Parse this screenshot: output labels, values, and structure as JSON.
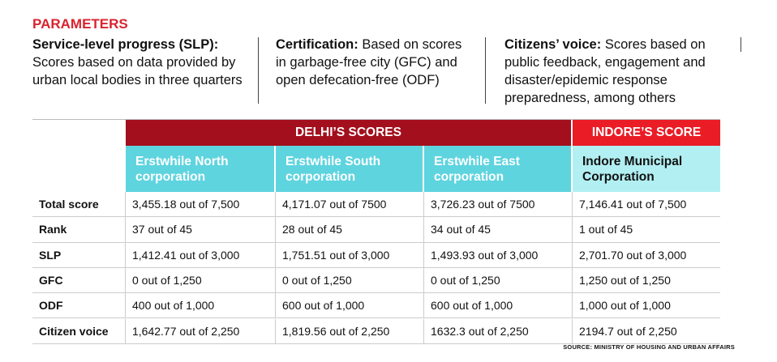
{
  "header": {
    "title": "PARAMETERS"
  },
  "parameters": [
    {
      "term": "Service-level progress (SLP):",
      "description": "Scores based on data provided by urban local bodies in three quarters"
    },
    {
      "term": "Certification:",
      "description": "Based on scores in garbage-free city (GFC) and open defecation-free (ODF)"
    },
    {
      "term": "Citizens’ voice:",
      "description": "Scores based on public feedback, engagement and disaster/epidemic response preparedness, among others"
    }
  ],
  "table": {
    "groups": [
      "DELHI’S SCORES",
      "INDORE’S SCORE"
    ],
    "columns": [
      "Erstwhile North corporation",
      "Erstwhile South corporation",
      "Erstwhile East corporation",
      "Indore Municipal Corporation"
    ],
    "rows": [
      {
        "label": "Total score",
        "cells": [
          "3,455.18 out of 7,500",
          "4,171.07 out of 7500",
          "3,726.23 out of 7500",
          "7,146.41 out of 7,500"
        ]
      },
      {
        "label": "Rank",
        "cells": [
          "37 out of 45",
          "28 out of 45",
          "34 out of 45",
          "1 out of 45"
        ]
      },
      {
        "label": "SLP",
        "cells": [
          "1,412.41 out of 3,000",
          "1,751.51 out of 3,000",
          "1,493.93 out of 3,000",
          "2,701.70 out of 3,000"
        ]
      },
      {
        "label": "GFC",
        "cells": [
          "0 out of 1,250",
          "0 out of 1,250",
          "0 out of 1,250",
          "1,250 out of 1,250"
        ]
      },
      {
        "label": "ODF",
        "cells": [
          "400 out of 1,000",
          "600 out of 1,000",
          "600 out of 1,000",
          "1,000 out of 1,000"
        ]
      },
      {
        "label": "Citizen voice",
        "cells": [
          "1,642.77 out of 2,250",
          "1,819.56 out of 2,250",
          "1632.3 out of 2,250",
          "2194.7 out of 2,250"
        ]
      }
    ]
  },
  "source": "SOURCE: MINISTRY OF HOUSING AND URBAN AFFAIRS"
}
